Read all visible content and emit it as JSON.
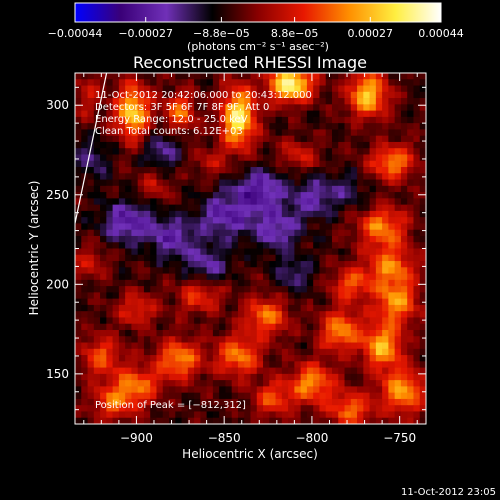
{
  "chart_data": {
    "type": "heatmap",
    "title": "Reconstructed RHESSI Image",
    "xlabel": "Heliocentric X (arcsec)",
    "ylabel": "Heliocentric Y (arcsec)",
    "xlim": [
      -935,
      -735
    ],
    "ylim": [
      122,
      318
    ],
    "x_ticks": [
      -900,
      -850,
      -800,
      -750
    ],
    "x_tick_labels": [
      "−900",
      "−850",
      "−800",
      "−750"
    ],
    "y_ticks": [
      150,
      200,
      250,
      300
    ],
    "y_tick_labels": [
      "150",
      "200",
      "250",
      "300"
    ],
    "colorbar": {
      "min": -0.00044,
      "max": 0.00044,
      "ticks": [
        -0.00044,
        -0.00027,
        -8.8e-05,
        8.8e-05,
        0.00027,
        0.00044
      ],
      "tick_labels": [
        "−0.00044",
        "−0.00027",
        "−8.8e−05",
        "8.8e−05",
        "0.00027",
        "0.00044"
      ],
      "unit_label": "(photons cm⁻² s⁻¹ asec⁻²)",
      "colors": [
        "#0000ff",
        "#3a0078",
        "#7030b8",
        "#000000",
        "#8a0000",
        "#e81800",
        "#ff9000",
        "#ffee40",
        "#ffffff"
      ]
    },
    "annotations": [
      "11-Oct-2012 20:42:06.000 to 20:43:12.000",
      "Detectors: 3F 5F 6F 7F 8F 9F, Att 0",
      "Energy Range: 12.0 - 25.0 keV",
      "Clean    Total counts: 6.12E+03"
    ],
    "peak": {
      "x": -812,
      "y": 312,
      "label": "Position of Peak = [−812,312]"
    },
    "limb_line": [
      [
        -935,
        234
      ],
      [
        -917,
        318
      ]
    ],
    "hot_spots": [
      {
        "x": -902,
        "y": 296,
        "value": 0.00036,
        "sx": 7,
        "sy": 11
      },
      {
        "x": -875,
        "y": 296,
        "value": 0.00024,
        "sx": 6,
        "sy": 8
      },
      {
        "x": -842,
        "y": 293,
        "value": 0.00041,
        "sx": 7,
        "sy": 12
      },
      {
        "x": -812,
        "y": 312,
        "value": 0.00044,
        "sx": 9,
        "sy": 7
      },
      {
        "x": -768,
        "y": 306,
        "value": 0.00034,
        "sx": 8,
        "sy": 9
      },
      {
        "x": -754,
        "y": 268,
        "value": 0.00027,
        "sx": 9,
        "sy": 7
      },
      {
        "x": -760,
        "y": 232,
        "value": 0.00026,
        "sx": 10,
        "sy": 8
      },
      {
        "x": -755,
        "y": 210,
        "value": 0.00024,
        "sx": 10,
        "sy": 8
      },
      {
        "x": -778,
        "y": 200,
        "value": 0.00021,
        "sx": 8,
        "sy": 7
      },
      {
        "x": -752,
        "y": 190,
        "value": 0.00027,
        "sx": 9,
        "sy": 9
      },
      {
        "x": -760,
        "y": 165,
        "value": 0.00031,
        "sx": 8,
        "sy": 9
      },
      {
        "x": -748,
        "y": 140,
        "value": 0.00029,
        "sx": 9,
        "sy": 9
      },
      {
        "x": -784,
        "y": 174,
        "value": 0.00028,
        "sx": 8,
        "sy": 8
      },
      {
        "x": -800,
        "y": 145,
        "value": 0.00027,
        "sx": 9,
        "sy": 8
      },
      {
        "x": -778,
        "y": 130,
        "value": 0.00024,
        "sx": 9,
        "sy": 7
      },
      {
        "x": -826,
        "y": 182,
        "value": 0.00025,
        "sx": 9,
        "sy": 8
      },
      {
        "x": -842,
        "y": 160,
        "value": 0.00026,
        "sx": 9,
        "sy": 8
      },
      {
        "x": -822,
        "y": 136,
        "value": 0.00021,
        "sx": 8,
        "sy": 7
      },
      {
        "x": -864,
        "y": 194,
        "value": 0.0002,
        "sx": 9,
        "sy": 7
      },
      {
        "x": -876,
        "y": 158,
        "value": 0.00028,
        "sx": 9,
        "sy": 8
      },
      {
        "x": -900,
        "y": 143,
        "value": 0.00025,
        "sx": 9,
        "sy": 8
      },
      {
        "x": -920,
        "y": 160,
        "value": 0.00021,
        "sx": 8,
        "sy": 8
      },
      {
        "x": -914,
        "y": 134,
        "value": 0.0002,
        "sx": 8,
        "sy": 7
      },
      {
        "x": -900,
        "y": 186,
        "value": 0.00017,
        "sx": 8,
        "sy": 7
      },
      {
        "x": -927,
        "y": 212,
        "value": 0.00013,
        "sx": 7,
        "sy": 7
      },
      {
        "x": -928,
        "y": 305,
        "value": 0.00012,
        "sx": 6,
        "sy": 9
      },
      {
        "x": -890,
        "y": 255,
        "value": 0.00012,
        "sx": 7,
        "sy": 6
      },
      {
        "x": -808,
        "y": 272,
        "value": 0.00014,
        "sx": 8,
        "sy": 6
      },
      {
        "x": -858,
        "y": 268,
        "value": 0.0001,
        "sx": 8,
        "sy": 6
      }
    ],
    "cold_spots": [
      {
        "x": -905,
        "y": 235,
        "value": -0.00022,
        "sx": 10,
        "sy": 8
      },
      {
        "x": -880,
        "y": 226,
        "value": -0.00018,
        "sx": 9,
        "sy": 8
      },
      {
        "x": -850,
        "y": 238,
        "value": -0.0002,
        "sx": 10,
        "sy": 9
      },
      {
        "x": -830,
        "y": 252,
        "value": -0.00022,
        "sx": 10,
        "sy": 9
      },
      {
        "x": -820,
        "y": 230,
        "value": -0.00018,
        "sx": 9,
        "sy": 8
      },
      {
        "x": -800,
        "y": 248,
        "value": -0.00016,
        "sx": 9,
        "sy": 8
      },
      {
        "x": -860,
        "y": 210,
        "value": -0.00015,
        "sx": 9,
        "sy": 8
      },
      {
        "x": -885,
        "y": 275,
        "value": -0.00014,
        "sx": 8,
        "sy": 8
      },
      {
        "x": -810,
        "y": 205,
        "value": -0.00012,
        "sx": 8,
        "sy": 7
      },
      {
        "x": -925,
        "y": 270,
        "value": -0.00012,
        "sx": 7,
        "sy": 8
      },
      {
        "x": -780,
        "y": 252,
        "value": -0.0001,
        "sx": 8,
        "sy": 7
      }
    ]
  },
  "footer": {
    "timestamp": "11-Oct-2012 23:05"
  }
}
